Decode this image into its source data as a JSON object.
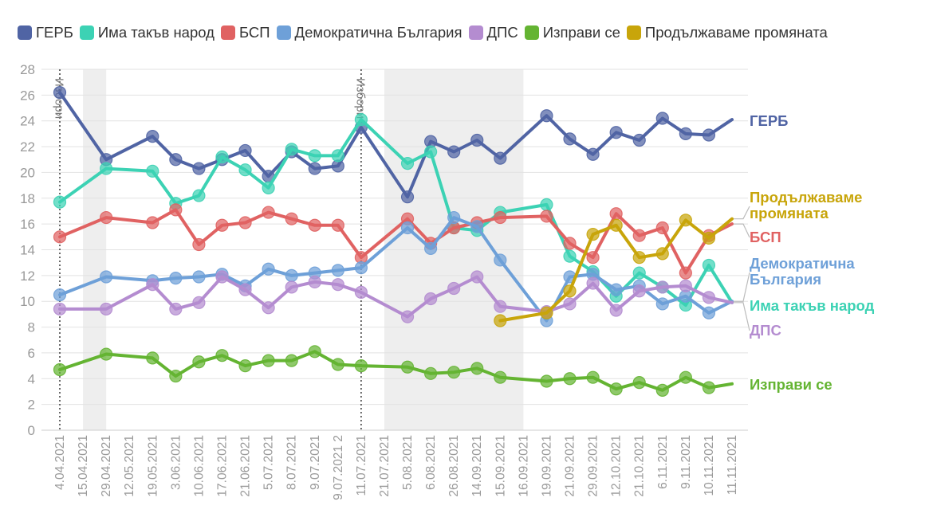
{
  "chart_data": {
    "type": "line",
    "grid": "y",
    "legend_position": "top",
    "ylim": [
      0,
      28
    ],
    "yticks": [
      0,
      2,
      4,
      6,
      8,
      10,
      12,
      14,
      16,
      18,
      20,
      22,
      24,
      26,
      28
    ],
    "categories": [
      "4.04.2021",
      "15.04.2021",
      "29.04.2021",
      "12.05.2021",
      "19.05.2021",
      "3.06.2021",
      "10.06.2021",
      "17.06.2021",
      "21.06.2021",
      "5.07.2021",
      "8.07.2021",
      "9.07.2021",
      "9.07.2021 2",
      "11.07.2021",
      "21.07.2021",
      "5.08.2021",
      "6.08.2021",
      "26.08.2021",
      "14.09.2021",
      "15.09.2021",
      "16.09.2021",
      "19.09.2021",
      "21.09.2021",
      "29.09.2021",
      "12.10.2021",
      "21.10.2021",
      "6.11.2021",
      "9.11.2021",
      "10.11.2021",
      "11.11.2021"
    ],
    "events": [
      {
        "category": "4.04.2021",
        "label": "Избори"
      },
      {
        "category": "11.07.2021",
        "label": "Избори"
      }
    ],
    "shaded_ranges": [
      [
        "15.04.2021",
        "29.04.2021"
      ],
      [
        "21.07.2021",
        "16.09.2021"
      ]
    ],
    "series": [
      {
        "name": "ГЕРБ",
        "end_label": "ГЕРБ",
        "color": "#5064a4",
        "points": [
          [
            0,
            26.2
          ],
          [
            2,
            21.0
          ],
          [
            4,
            22.8
          ],
          [
            5,
            21.0
          ],
          [
            6,
            20.3
          ],
          [
            7,
            21.0
          ],
          [
            8,
            21.7
          ],
          [
            9,
            19.7
          ],
          [
            10,
            21.6
          ],
          [
            11,
            20.3
          ],
          [
            12,
            20.5
          ],
          [
            13,
            23.5
          ],
          [
            15,
            18.1
          ],
          [
            16,
            22.4
          ],
          [
            17,
            21.6
          ],
          [
            18,
            22.5
          ],
          [
            19,
            21.1
          ],
          [
            21,
            24.4
          ],
          [
            22,
            22.6
          ],
          [
            23,
            21.4
          ],
          [
            24,
            23.1
          ],
          [
            25,
            22.5
          ],
          [
            26,
            24.2
          ],
          [
            27,
            23.0
          ],
          [
            28,
            22.9
          ],
          [
            29,
            24.1
          ]
        ]
      },
      {
        "name": "Има такъв народ",
        "end_label": "Има такъв народ",
        "color": "#3cd2b4",
        "points": [
          [
            0,
            17.7
          ],
          [
            2,
            20.3
          ],
          [
            4,
            20.1
          ],
          [
            5,
            17.6
          ],
          [
            6,
            18.2
          ],
          [
            7,
            21.2
          ],
          [
            8,
            20.2
          ],
          [
            9,
            18.8
          ],
          [
            10,
            21.8
          ],
          [
            11,
            21.3
          ],
          [
            12,
            21.3
          ],
          [
            13,
            24.1
          ],
          [
            15,
            20.7
          ],
          [
            16,
            21.6
          ],
          [
            17,
            15.7
          ],
          [
            18,
            15.5
          ],
          [
            19,
            16.9
          ],
          [
            21,
            17.5
          ],
          [
            22,
            13.5
          ],
          [
            23,
            12.3
          ],
          [
            24,
            10.4
          ],
          [
            25,
            12.2
          ],
          [
            26,
            11.1
          ],
          [
            27,
            9.7
          ],
          [
            28,
            12.8
          ],
          [
            29,
            9.9
          ]
        ]
      },
      {
        "name": "БСП",
        "end_label": "БСП",
        "color": "#e06262",
        "points": [
          [
            0,
            15.0
          ],
          [
            2,
            16.5
          ],
          [
            4,
            16.1
          ],
          [
            5,
            17.1
          ],
          [
            6,
            14.4
          ],
          [
            7,
            15.9
          ],
          [
            8,
            16.1
          ],
          [
            9,
            16.9
          ],
          [
            10,
            16.4
          ],
          [
            11,
            15.9
          ],
          [
            12,
            15.9
          ],
          [
            13,
            13.4
          ],
          [
            15,
            16.4
          ],
          [
            16,
            14.5
          ],
          [
            17,
            15.7
          ],
          [
            18,
            16.1
          ],
          [
            19,
            16.5
          ],
          [
            21,
            16.6
          ],
          [
            22,
            14.5
          ],
          [
            23,
            13.4
          ],
          [
            24,
            16.8
          ],
          [
            25,
            15.1
          ],
          [
            26,
            15.7
          ],
          [
            27,
            12.2
          ],
          [
            28,
            15.1
          ],
          [
            29,
            16.0
          ]
        ]
      },
      {
        "name": "Демократична България",
        "end_label": "Демократична България",
        "color": "#6ea0d8",
        "points": [
          [
            0,
            10.5
          ],
          [
            2,
            11.9
          ],
          [
            4,
            11.6
          ],
          [
            5,
            11.8
          ],
          [
            6,
            11.9
          ],
          [
            7,
            12.1
          ],
          [
            8,
            11.2
          ],
          [
            9,
            12.5
          ],
          [
            10,
            12.0
          ],
          [
            11,
            12.2
          ],
          [
            12,
            12.4
          ],
          [
            13,
            12.6
          ],
          [
            15,
            15.7
          ],
          [
            16,
            14.1
          ],
          [
            17,
            16.5
          ],
          [
            18,
            15.8
          ],
          [
            19,
            13.2
          ],
          [
            21,
            8.5
          ],
          [
            22,
            11.9
          ],
          [
            23,
            12.1
          ],
          [
            24,
            10.9
          ],
          [
            25,
            11.2
          ],
          [
            26,
            9.8
          ],
          [
            27,
            10.4
          ],
          [
            28,
            9.1
          ],
          [
            29,
            10.0
          ]
        ]
      },
      {
        "name": "ДПС",
        "end_label": "ДПС",
        "color": "#b48cd0",
        "points": [
          [
            0,
            9.4
          ],
          [
            2,
            9.4
          ],
          [
            4,
            11.3
          ],
          [
            5,
            9.4
          ],
          [
            6,
            9.9
          ],
          [
            7,
            11.9
          ],
          [
            8,
            10.9
          ],
          [
            9,
            9.5
          ],
          [
            10,
            11.1
          ],
          [
            11,
            11.5
          ],
          [
            12,
            11.3
          ],
          [
            13,
            10.7
          ],
          [
            15,
            8.8
          ],
          [
            16,
            10.2
          ],
          [
            17,
            11.0
          ],
          [
            18,
            11.9
          ],
          [
            19,
            9.6
          ],
          [
            21,
            9.2
          ],
          [
            22,
            9.8
          ],
          [
            23,
            11.4
          ],
          [
            24,
            9.3
          ],
          [
            25,
            10.8
          ],
          [
            26,
            11.1
          ],
          [
            27,
            11.2
          ],
          [
            28,
            10.3
          ],
          [
            29,
            9.9
          ]
        ]
      },
      {
        "name": "Изправи се",
        "end_label": "Изправи се",
        "color": "#64b432",
        "points": [
          [
            0,
            4.7
          ],
          [
            2,
            5.9
          ],
          [
            4,
            5.6
          ],
          [
            5,
            4.2
          ],
          [
            6,
            5.3
          ],
          [
            7,
            5.8
          ],
          [
            8,
            5.0
          ],
          [
            9,
            5.4
          ],
          [
            10,
            5.4
          ],
          [
            11,
            6.1
          ],
          [
            12,
            5.1
          ],
          [
            13,
            5.0
          ],
          [
            15,
            4.9
          ],
          [
            16,
            4.4
          ],
          [
            17,
            4.5
          ],
          [
            18,
            4.8
          ],
          [
            19,
            4.1
          ],
          [
            21,
            3.8
          ],
          [
            22,
            4.0
          ],
          [
            23,
            4.1
          ],
          [
            24,
            3.2
          ],
          [
            25,
            3.7
          ],
          [
            26,
            3.1
          ],
          [
            27,
            4.1
          ],
          [
            28,
            3.3
          ],
          [
            29,
            3.6
          ]
        ]
      },
      {
        "name": "Продължаваме промяната",
        "end_label": "Продължаваме промяната",
        "color": "#c8a50a",
        "points": [
          [
            19,
            8.5
          ],
          [
            21,
            9.1
          ],
          [
            22,
            10.8
          ],
          [
            23,
            15.2
          ],
          [
            24,
            15.9
          ],
          [
            25,
            13.4
          ],
          [
            26,
            13.7
          ],
          [
            27,
            16.3
          ],
          [
            28,
            14.9
          ],
          [
            29,
            16.4
          ]
        ]
      }
    ]
  }
}
